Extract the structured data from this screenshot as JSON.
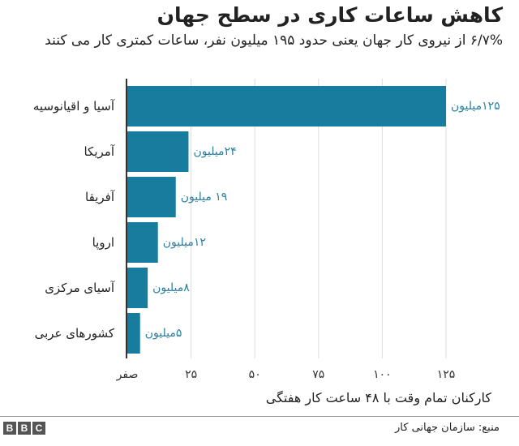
{
  "chart_data": {
    "type": "bar",
    "orientation": "horizontal",
    "title": "کاهش ساعات کاری در سطح جهان",
    "subtitle": "۶/۷% از نیروی کار جهان یعنی حدود ۱۹۵ میلیون نفر، ساعات کمتری کار می کنند",
    "xlabel": "کارکنان تمام وقت با ۴۸ ساعت کار هفتگی",
    "categories": [
      "آسیا و اقیانوسیه",
      "آمریکا",
      "آفریقا",
      "اروپا",
      "آسیای مرکزی",
      "کشورهای عربی"
    ],
    "values": [
      125,
      24,
      19,
      12,
      8,
      5
    ],
    "data_labels": [
      "۱۲۵میلیون",
      "۲۴میلیون",
      "۱۹ میلیون",
      "۱۲میلیون",
      "۸میلیون",
      "۵میلیون"
    ],
    "xlim": [
      0,
      125
    ],
    "xticks": [
      0,
      25,
      50,
      75,
      100,
      125
    ],
    "xtick_labels": [
      "صفر",
      "۲۵",
      "۵۰",
      "۷۵",
      "۱۰۰",
      "۱۲۵"
    ],
    "grid": true,
    "bar_color": "#187c9f",
    "label_color": "#2a7fa0"
  },
  "footer": {
    "source": "منبع: سازمان جهانی کار",
    "logo": "BBC"
  }
}
